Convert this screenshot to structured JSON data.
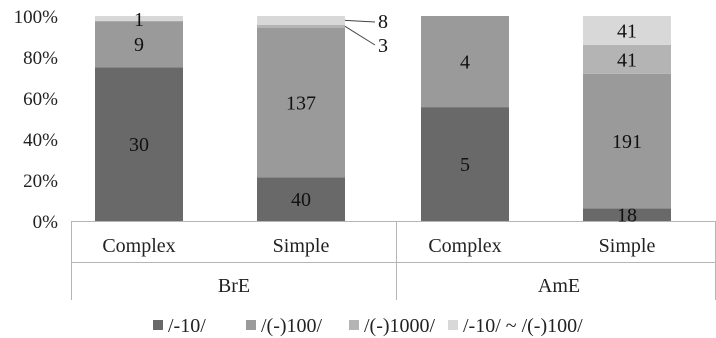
{
  "chart_data": {
    "type": "bar",
    "stacked": "percent",
    "groups": [
      {
        "label": "BrE",
        "categories": [
          "Complex",
          "Simple"
        ]
      },
      {
        "label": "AmE",
        "categories": [
          "Complex",
          "Simple"
        ]
      }
    ],
    "categories": [
      "Complex",
      "Simple",
      "Complex",
      "Simple"
    ],
    "series": [
      {
        "name": "/-10/",
        "color": "#696969",
        "values": [
          30,
          40,
          5,
          18
        ]
      },
      {
        "name": "/(-)100/",
        "color": "#9a9a9a",
        "values": [
          9,
          137,
          4,
          191
        ]
      },
      {
        "name": "/(-)1000/",
        "color": "#b4b4b4",
        "values": [
          0,
          3,
          0,
          41
        ]
      },
      {
        "name": "/-10/ ~ /(-)100/",
        "color": "#d8d8d8",
        "values": [
          1,
          8,
          0,
          41
        ]
      }
    ],
    "yticks": [
      "0%",
      "20%",
      "40%",
      "60%",
      "80%",
      "100%"
    ],
    "ylim": [
      0,
      100
    ],
    "legend_position": "bottom",
    "grid": false
  }
}
